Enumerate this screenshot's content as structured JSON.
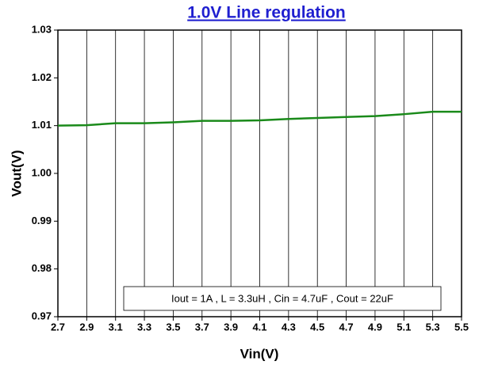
{
  "chart_data": {
    "type": "line",
    "title": "1.0V Line regulation",
    "x_label": "Vin(V)",
    "y_label": "Vout(V)",
    "annotation": "Iout = 1A , L = 3.3uH , Cin = 4.7uF , Cout = 22uF",
    "x": [
      2.7,
      2.9,
      3.1,
      3.3,
      3.5,
      3.7,
      3.9,
      4.1,
      4.3,
      4.5,
      4.7,
      4.9,
      5.1,
      5.3,
      5.5
    ],
    "series": [
      {
        "name": "Vout",
        "color": "#1a8a1a",
        "values": [
          1.01,
          1.0101,
          1.0105,
          1.0105,
          1.0107,
          1.011,
          1.011,
          1.0111,
          1.0114,
          1.0116,
          1.0118,
          1.012,
          1.0124,
          1.0129,
          1.0129
        ]
      }
    ],
    "xlim": [
      2.7,
      5.5
    ],
    "xticks": [
      2.7,
      2.9,
      3.1,
      3.3,
      3.5,
      3.7,
      3.9,
      4.1,
      4.3,
      4.5,
      4.7,
      4.9,
      5.1,
      5.3,
      5.5
    ],
    "ylim": [
      0.97,
      1.03
    ],
    "yticks": [
      0.97,
      0.98,
      0.99,
      {
        "value": 1.0,
        "label": "1.00"
      },
      1.01,
      1.02,
      1.03
    ],
    "grid": "x"
  }
}
